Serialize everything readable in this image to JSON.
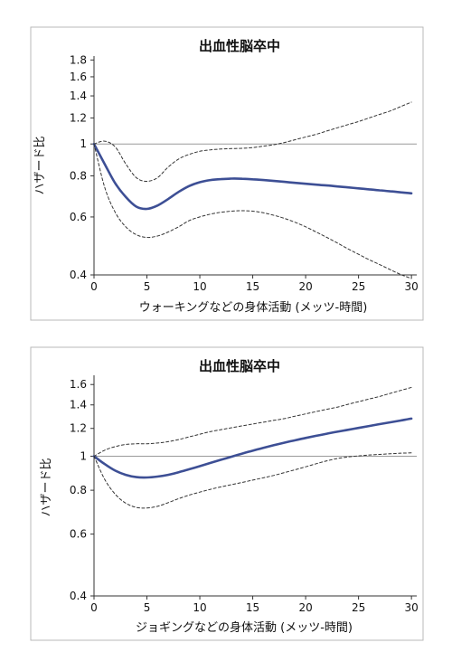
{
  "chart_data": [
    {
      "type": "line",
      "title": "出血性脳卒中",
      "xlabel": "ウォーキングなどの身体活動 (メッツ-時間)",
      "ylabel": "ハザード比",
      "xlim": [
        0,
        30.5
      ],
      "ylim": [
        0.4,
        1.85
      ],
      "yscale": "log",
      "x_ticks": [
        0,
        5,
        10,
        15,
        20,
        25,
        30
      ],
      "y_ticks": [
        0.4,
        0.6,
        0.8,
        1,
        1.2,
        1.4,
        1.6,
        1.8
      ],
      "reference_line": 1,
      "colors": {
        "estimate": "#3d4f95",
        "ci": "#333333",
        "reference": "#9a9a9a"
      },
      "series": [
        {
          "role": "estimate",
          "style": "solid",
          "x": [
            0,
            1,
            2,
            3,
            4,
            5,
            6,
            7,
            8,
            9,
            10,
            11,
            12,
            13,
            14,
            15,
            16,
            17,
            18,
            19,
            20,
            21,
            22,
            23,
            24,
            25,
            26,
            27,
            28,
            29,
            30
          ],
          "y": [
            1.0,
            0.87,
            0.76,
            0.69,
            0.645,
            0.635,
            0.65,
            0.68,
            0.715,
            0.745,
            0.765,
            0.777,
            0.782,
            0.785,
            0.784,
            0.781,
            0.777,
            0.772,
            0.767,
            0.762,
            0.757,
            0.752,
            0.748,
            0.743,
            0.738,
            0.733,
            0.728,
            0.723,
            0.718,
            0.713,
            0.708
          ]
        },
        {
          "role": "upper",
          "style": "dashed",
          "x": [
            0,
            1,
            2,
            3,
            4,
            5,
            6,
            7,
            8,
            9,
            10,
            11,
            12,
            13,
            14,
            15,
            16,
            17,
            18,
            19,
            20,
            21,
            22,
            23,
            24,
            25,
            26,
            27,
            28,
            29,
            30
          ],
          "y": [
            1.0,
            1.02,
            0.98,
            0.87,
            0.79,
            0.77,
            0.79,
            0.85,
            0.9,
            0.93,
            0.95,
            0.96,
            0.965,
            0.968,
            0.97,
            0.975,
            0.985,
            0.995,
            1.01,
            1.03,
            1.05,
            1.07,
            1.095,
            1.12,
            1.145,
            1.17,
            1.2,
            1.23,
            1.26,
            1.3,
            1.34
          ]
        },
        {
          "role": "lower",
          "style": "dashed",
          "x": [
            0,
            1,
            2,
            3,
            4,
            5,
            6,
            7,
            8,
            9,
            10,
            11,
            12,
            13,
            14,
            15,
            16,
            17,
            18,
            19,
            20,
            21,
            22,
            23,
            24,
            25,
            26,
            27,
            28,
            29,
            30
          ],
          "y": [
            1.0,
            0.74,
            0.62,
            0.56,
            0.53,
            0.52,
            0.525,
            0.54,
            0.56,
            0.585,
            0.6,
            0.612,
            0.62,
            0.625,
            0.627,
            0.625,
            0.618,
            0.607,
            0.594,
            0.578,
            0.56,
            0.54,
            0.52,
            0.5,
            0.48,
            0.462,
            0.445,
            0.43,
            0.415,
            0.401,
            0.39
          ]
        }
      ]
    },
    {
      "type": "line",
      "title": "出血性脳卒中",
      "xlabel": "ジョギングなどの身体活動 (メッツ-時間)",
      "ylabel": "ハザード比",
      "xlim": [
        0,
        30.5
      ],
      "ylim": [
        0.4,
        1.7
      ],
      "yscale": "log",
      "x_ticks": [
        0,
        5,
        10,
        15,
        20,
        25,
        30
      ],
      "y_ticks": [
        0.4,
        0.6,
        0.8,
        1,
        1.2,
        1.4,
        1.6
      ],
      "reference_line": 1,
      "colors": {
        "estimate": "#3d4f95",
        "ci": "#333333",
        "reference": "#9a9a9a"
      },
      "series": [
        {
          "role": "estimate",
          "style": "solid",
          "x": [
            0,
            1,
            2,
            3,
            4,
            5,
            6,
            7,
            8,
            9,
            10,
            11,
            12,
            13,
            14,
            15,
            16,
            17,
            18,
            19,
            20,
            21,
            22,
            23,
            24,
            25,
            26,
            27,
            28,
            29,
            30
          ],
          "y": [
            1.0,
            0.95,
            0.91,
            0.885,
            0.872,
            0.87,
            0.875,
            0.885,
            0.9,
            0.918,
            0.937,
            0.957,
            0.977,
            0.997,
            1.017,
            1.037,
            1.056,
            1.075,
            1.093,
            1.11,
            1.127,
            1.143,
            1.159,
            1.174,
            1.189,
            1.204,
            1.219,
            1.234,
            1.249,
            1.264,
            1.28
          ]
        },
        {
          "role": "upper",
          "style": "dashed",
          "x": [
            0,
            1,
            2,
            3,
            4,
            5,
            6,
            7,
            8,
            9,
            10,
            11,
            12,
            13,
            14,
            15,
            16,
            17,
            18,
            19,
            20,
            21,
            22,
            23,
            24,
            25,
            26,
            27,
            28,
            29,
            30
          ],
          "y": [
            1.0,
            1.04,
            1.065,
            1.08,
            1.085,
            1.085,
            1.09,
            1.1,
            1.115,
            1.135,
            1.155,
            1.175,
            1.19,
            1.205,
            1.22,
            1.235,
            1.25,
            1.265,
            1.28,
            1.3,
            1.32,
            1.34,
            1.36,
            1.38,
            1.405,
            1.43,
            1.455,
            1.48,
            1.51,
            1.54,
            1.57
          ]
        },
        {
          "role": "lower",
          "style": "dashed",
          "x": [
            0,
            1,
            2,
            3,
            4,
            5,
            6,
            7,
            8,
            9,
            10,
            11,
            12,
            13,
            14,
            15,
            16,
            17,
            18,
            19,
            20,
            21,
            22,
            23,
            24,
            25,
            26,
            27,
            28,
            29,
            30
          ],
          "y": [
            1.0,
            0.86,
            0.78,
            0.735,
            0.715,
            0.712,
            0.72,
            0.737,
            0.757,
            0.775,
            0.79,
            0.805,
            0.818,
            0.83,
            0.842,
            0.855,
            0.868,
            0.882,
            0.898,
            0.915,
            0.933,
            0.952,
            0.97,
            0.985,
            0.995,
            1.002,
            1.008,
            1.012,
            1.016,
            1.02,
            1.022
          ]
        }
      ]
    }
  ]
}
